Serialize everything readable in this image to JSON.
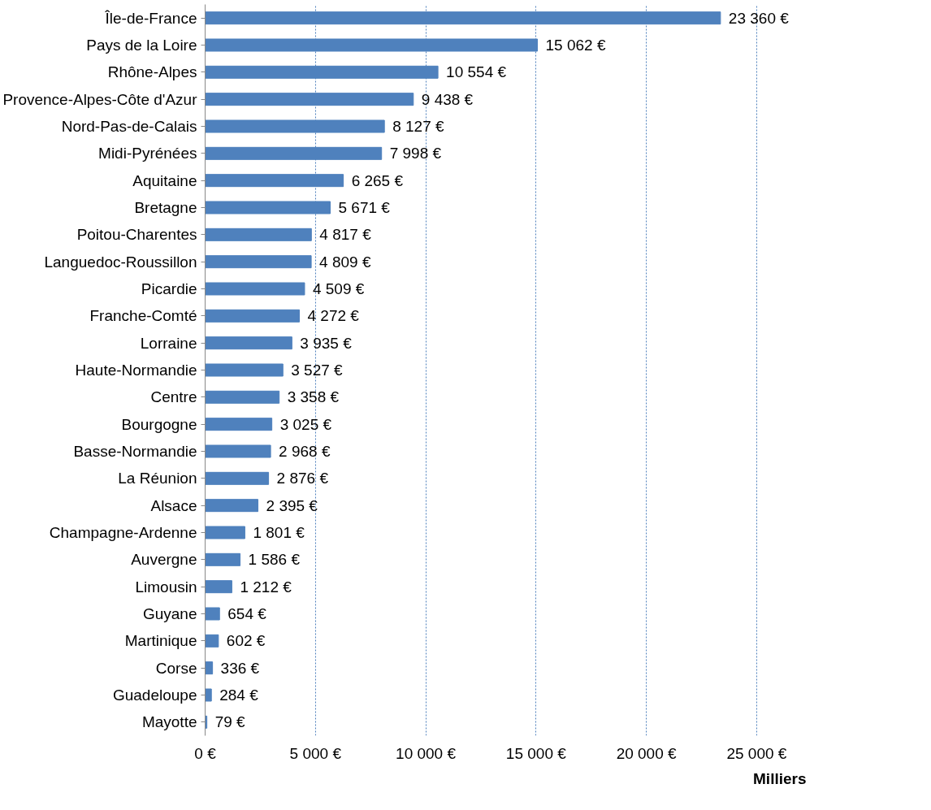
{
  "chart_data": {
    "type": "bar",
    "orientation": "horizontal",
    "xlabel": "Milliers",
    "categories": [
      "Île-de-France",
      "Pays de la Loire",
      "Rhône-Alpes",
      "Provence-Alpes-Côte d'Azur",
      "Nord-Pas-de-Calais",
      "Midi-Pyrénées",
      "Aquitaine",
      "Bretagne",
      "Poitou-Charentes",
      "Languedoc-Roussillon",
      "Picardie",
      "Franche-Comté",
      "Lorraine",
      "Haute-Normandie",
      "Centre",
      "Bourgogne",
      "Basse-Normandie",
      "La Réunion",
      "Alsace",
      "Champagne-Ardenne",
      "Auvergne",
      "Limousin",
      "Guyane",
      "Martinique",
      "Corse",
      "Guadeloupe",
      "Mayotte"
    ],
    "values": [
      23360,
      15062,
      10554,
      9438,
      8127,
      7998,
      6265,
      5671,
      4817,
      4809,
      4509,
      4272,
      3935,
      3527,
      3358,
      3025,
      2968,
      2876,
      2395,
      1801,
      1586,
      1212,
      654,
      602,
      336,
      284,
      79
    ],
    "value_labels": [
      "23 360 €",
      "15 062 €",
      "10 554 €",
      "9 438 €",
      "8 127 €",
      "7 998 €",
      "6 265 €",
      "5 671 €",
      "4 817 €",
      "4 809 €",
      "4 509 €",
      "4 272 €",
      "3 935 €",
      "3 527 €",
      "3 358 €",
      "3 025 €",
      "2 968 €",
      "2 876 €",
      "2 395 €",
      "1 801 €",
      "1 586 €",
      "1 212 €",
      "654 €",
      "602 €",
      "336 €",
      "284 €",
      "79 €"
    ],
    "color": "#4f81bd",
    "xlim": [
      0,
      25000
    ],
    "xticks": [
      {
        "value": 0,
        "label": "0 €"
      },
      {
        "value": 5000,
        "label": "5 000 €"
      },
      {
        "value": 10000,
        "label": "10 000 €"
      },
      {
        "value": 15000,
        "label": "15 000 €"
      },
      {
        "value": 20000,
        "label": "20 000 €"
      },
      {
        "value": 25000,
        "label": "25 000 €"
      }
    ],
    "grid": "x"
  }
}
